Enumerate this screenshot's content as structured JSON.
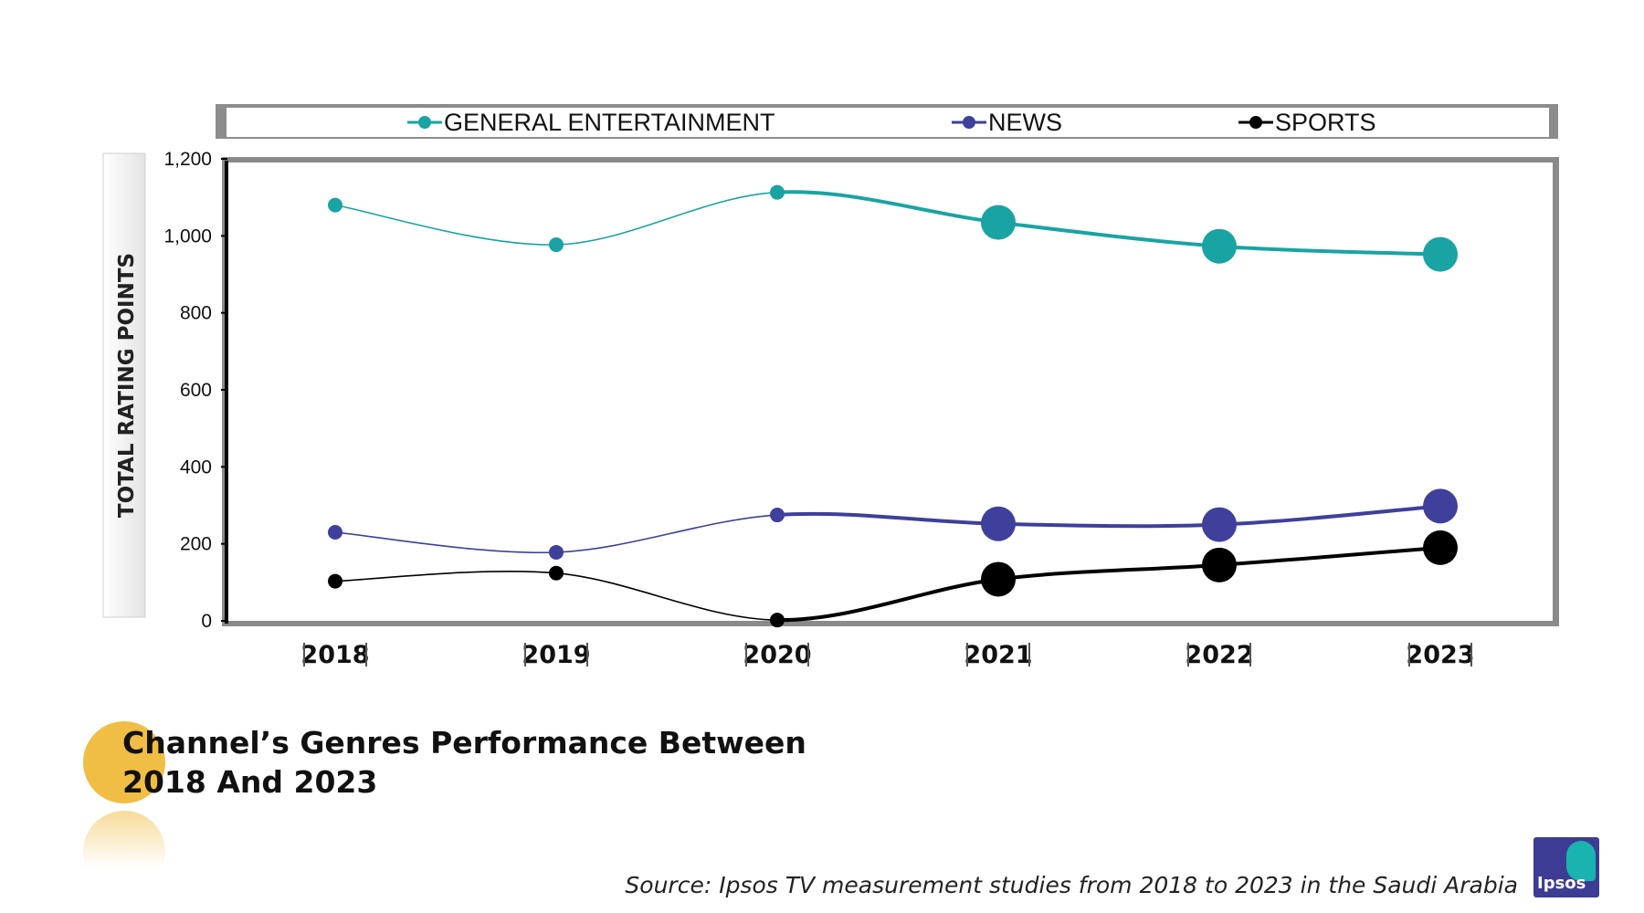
{
  "chart_data": {
    "type": "line",
    "title": "Channel’s Genres Performance Between 2018 And 2023",
    "xlabel": "",
    "ylabel": "TOTAL RATING POINTS",
    "categories": [
      "2018",
      "2019",
      "2020",
      "2021",
      "2022",
      "2023"
    ],
    "ylim": [
      0,
      1200
    ],
    "yticks": [
      0,
      200,
      400,
      600,
      800,
      1000,
      1200
    ],
    "ytick_labels": [
      "0",
      "200",
      "400",
      "600",
      "800",
      "1,000",
      "1,200"
    ],
    "legend_position": "top",
    "grid": false,
    "series": [
      {
        "name": "GENERAL ENTERTAINMENT",
        "color": "#1aa3a3",
        "values": [
          1080,
          977,
          1113,
          1035,
          973,
          952
        ]
      },
      {
        "name": "NEWS",
        "color": "#3f3f9c",
        "values": [
          230,
          178,
          275,
          252,
          250,
          298
        ]
      },
      {
        "name": "SPORTS",
        "color": "#000000",
        "values": [
          103,
          124,
          2,
          108,
          145,
          190
        ]
      }
    ],
    "source": "Source: Ipsos TV measurement studies from 2018 to 2023 in the Saudi Arabia"
  },
  "heading": {
    "line1": "Channel’s Genres Performance Between",
    "line2": "2018 And 2023"
  },
  "logo": {
    "text": "Ipsos",
    "accent": "#19b3b0",
    "background": "#3c3c95"
  }
}
